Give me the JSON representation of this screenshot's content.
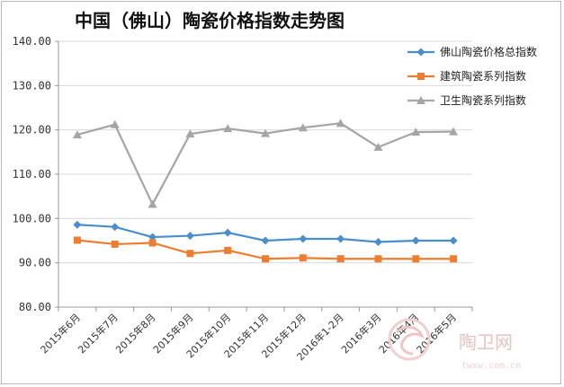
{
  "chart_data": {
    "type": "line",
    "title": "中国（佛山）陶瓷价格指数走势图",
    "categories": [
      "2015年6月",
      "2015年7月",
      "2015年8月",
      "2015年9月",
      "2015年10月",
      "2015年11月",
      "2015年12月",
      "2016年1-2月",
      "2016年3月",
      "2016年4月",
      "2016年5月"
    ],
    "ylim": [
      80,
      140
    ],
    "yticks": [
      "80.00",
      "90.00",
      "100.00",
      "110.00",
      "120.00",
      "130.00",
      "140.00"
    ],
    "grid": true,
    "legend_position": "top-right",
    "series": [
      {
        "name": "佛山陶瓷价格总指数",
        "color": "#4a8fcc",
        "marker": "diamond",
        "values": [
          98.6,
          98.1,
          95.8,
          96.1,
          96.8,
          95.0,
          95.4,
          95.4,
          94.7,
          95.0,
          95.0
        ]
      },
      {
        "name": "建筑陶瓷系列指数",
        "color": "#ed7d31",
        "marker": "square",
        "values": [
          95.1,
          94.2,
          94.5,
          92.1,
          92.8,
          90.9,
          91.1,
          90.9,
          90.9,
          90.9,
          90.9
        ]
      },
      {
        "name": "卫生陶瓷系列指数",
        "color": "#a5a5a5",
        "marker": "triangle",
        "values": [
          118.9,
          121.2,
          103.2,
          119.1,
          120.3,
          119.2,
          120.5,
          121.5,
          116.1,
          119.5,
          119.6
        ]
      }
    ]
  },
  "watermark": {
    "text": "陶卫网",
    "url": "twxw.com.cn"
  }
}
